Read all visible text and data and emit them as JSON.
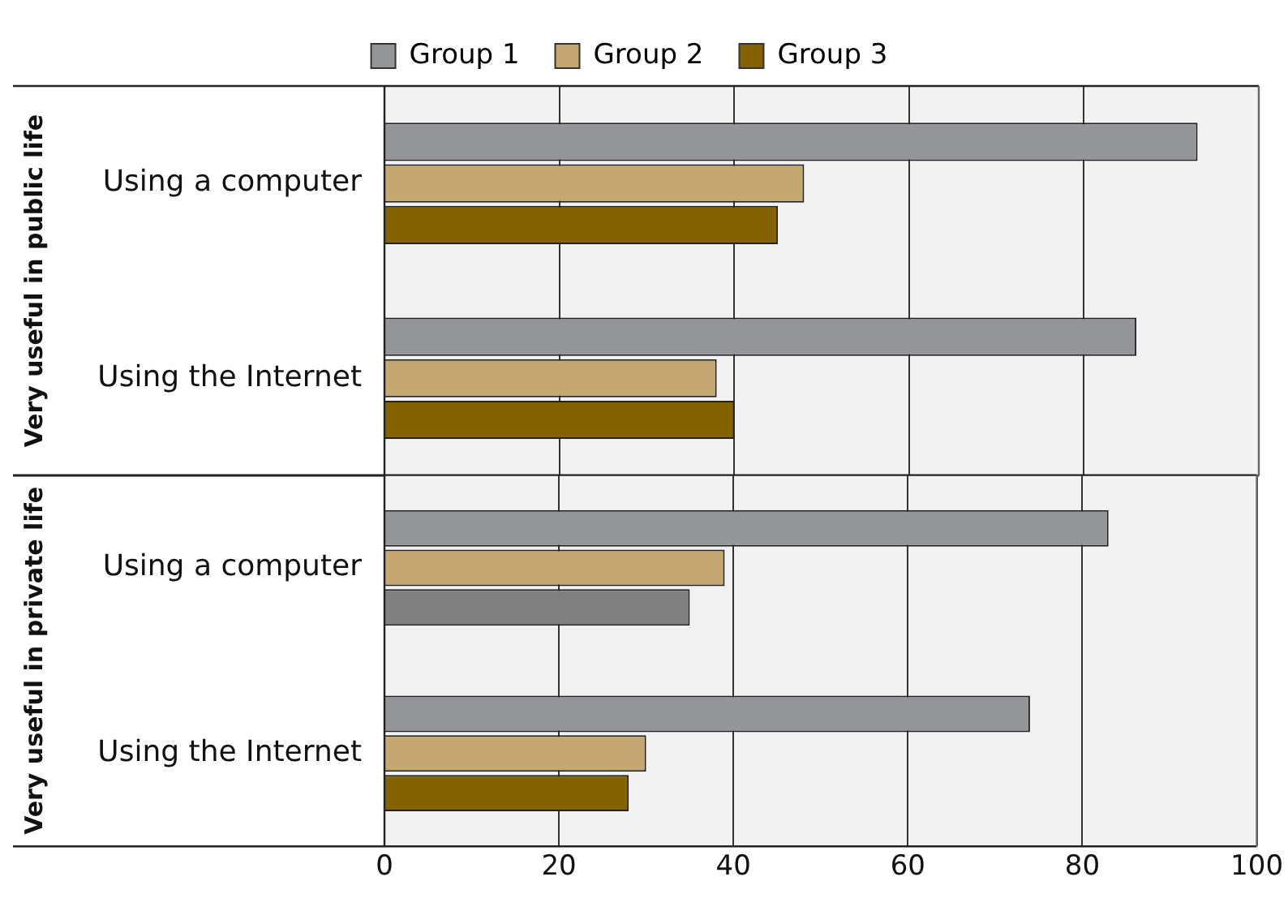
{
  "chart_data": [
    {
      "type": "bar",
      "orientation": "horizontal",
      "ylabel": "Very useful in public life",
      "categories": [
        "Using a computer",
        "Using the Internet"
      ],
      "series": [
        {
          "name": "Group 1",
          "color": "#939598",
          "values": [
            93,
            86
          ]
        },
        {
          "name": "Group 2",
          "color": "#c4a771",
          "values": [
            48,
            38
          ]
        },
        {
          "name": "Group 3",
          "color": "#846200",
          "values": [
            45,
            40
          ]
        }
      ],
      "xlim": [
        0,
        100
      ],
      "xticks": [
        0,
        20,
        40,
        60,
        80,
        100
      ],
      "grid": "x",
      "legend": "top",
      "tick_labels": "y"
    },
    {
      "type": "bar",
      "orientation": "horizontal",
      "ylabel": "Very useful in private life",
      "categories": [
        "Using a computer",
        "Using the Internet"
      ],
      "series": [
        {
          "color": "#939598",
          "values": [
            83,
            74
          ]
        },
        {
          "color": "#c4a771",
          "values": [
            39,
            30
          ]
        },
        {
          "color": "#846200",
          "colors": [
            "#808080",
            null
          ],
          "values": [
            35,
            28
          ]
        }
      ],
      "xlim": [
        0,
        100
      ],
      "xticks": [
        0,
        20,
        40,
        60,
        80,
        100
      ],
      "grid": "x"
    }
  ]
}
